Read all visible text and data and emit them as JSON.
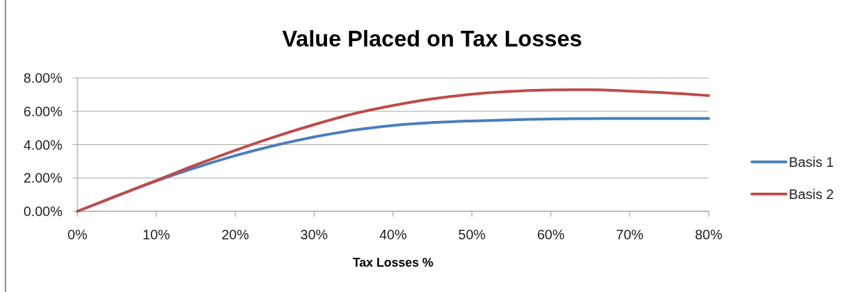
{
  "chart_data": {
    "type": "line",
    "title": "Value Placed on Tax Losses",
    "xlabel": "Tax Losses %",
    "x": [
      0,
      5,
      10,
      15,
      20,
      25,
      30,
      35,
      40,
      45,
      50,
      55,
      60,
      65,
      70,
      75,
      80
    ],
    "xlim": [
      0,
      80
    ],
    "xticks": [
      {
        "value": 0,
        "label": "0%"
      },
      {
        "value": 10,
        "label": "10%"
      },
      {
        "value": 20,
        "label": "20%"
      },
      {
        "value": 30,
        "label": "30%"
      },
      {
        "value": 40,
        "label": "40%"
      },
      {
        "value": 50,
        "label": "50%"
      },
      {
        "value": 60,
        "label": "60%"
      },
      {
        "value": 70,
        "label": "70%"
      },
      {
        "value": 80,
        "label": "80%"
      }
    ],
    "ylim": [
      0,
      8
    ],
    "yticks": [
      {
        "value": 0,
        "label": "0.00%"
      },
      {
        "value": 2,
        "label": "2.00%"
      },
      {
        "value": 4,
        "label": "4.00%"
      },
      {
        "value": 6,
        "label": "6.00%"
      },
      {
        "value": 8,
        "label": "8.00%"
      }
    ],
    "grid": "y",
    "legend": "right",
    "line_style": "solid",
    "series": [
      {
        "name": "Basis 1",
        "color": "#4a7ebb",
        "values": [
          0,
          0.93,
          1.82,
          2.62,
          3.34,
          3.95,
          4.46,
          4.87,
          5.15,
          5.32,
          5.42,
          5.49,
          5.54,
          5.56,
          5.57,
          5.57,
          5.57
        ]
      },
      {
        "name": "Basis 2",
        "color": "#be4b48",
        "values": [
          0,
          0.93,
          1.85,
          2.78,
          3.66,
          4.47,
          5.2,
          5.85,
          6.35,
          6.75,
          7.03,
          7.2,
          7.28,
          7.29,
          7.21,
          7.1,
          6.94
        ]
      }
    ]
  }
}
